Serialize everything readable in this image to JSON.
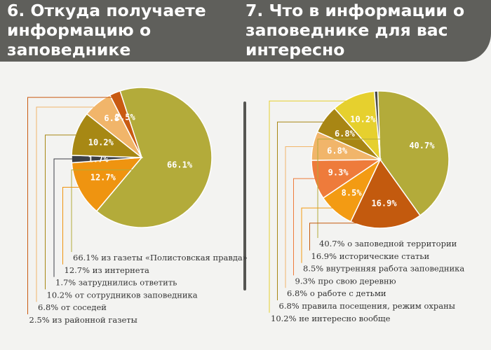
{
  "chart_data": [
    {
      "type": "pie",
      "title": "6. Откуда получаете информацию о заповеднике",
      "slices": [
        {
          "label": "66.1% из газеты «Полистовская правда»",
          "value": 66.1,
          "display": "66.1%",
          "color": "#b3ab3a"
        },
        {
          "label": "12.7% из интернета",
          "value": 12.7,
          "display": "12.7%",
          "color": "#ef9410"
        },
        {
          "label": "1.7% затруднились ответить",
          "value": 1.7,
          "display": "1.7%",
          "color": "#3c3f46"
        },
        {
          "label": "10.2% от сотрудников заповедника",
          "value": 10.2,
          "display": "10.2%",
          "color": "#a78814"
        },
        {
          "label": "6.8% от соседей",
          "value": 6.8,
          "display": "6.8%",
          "color": "#f1b56a"
        },
        {
          "label": "2.5% из районной газеты",
          "value": 2.5,
          "display": "2.5%",
          "color": "#c95a12"
        }
      ]
    },
    {
      "type": "pie",
      "title": "7. Что в информации о заповеднике для вас интересно",
      "slices": [
        {
          "label": "40.7% о заповедной территории",
          "value": 40.7,
          "display": "40.7%",
          "color": "#b3ab3a"
        },
        {
          "label": "16.9% исторические статьи",
          "value": 16.9,
          "display": "16.9%",
          "color": "#c35a0e"
        },
        {
          "label": "8.5% внутренняя работа заповедника",
          "value": 8.5,
          "display": "8.5%",
          "color": "#f39b13"
        },
        {
          "label": "9.3% про свою деревню",
          "value": 9.3,
          "display": "9.3%",
          "color": "#ee7b3b"
        },
        {
          "label": "6.8% о работе с детьми",
          "value": 6.8,
          "display": "6.8%",
          "color": "#f1b56a"
        },
        {
          "label": "6.8% правила посещения, режим охраны",
          "value": 6.8,
          "display": "6.8%",
          "color": "#a88614"
        },
        {
          "label": "10.2% не интересно вообще",
          "value": 10.2,
          "display": "10.2%",
          "color": "#e6d02e"
        },
        {
          "label": "",
          "value": 0.8,
          "display": "",
          "color": "#4a4a48"
        }
      ]
    }
  ]
}
